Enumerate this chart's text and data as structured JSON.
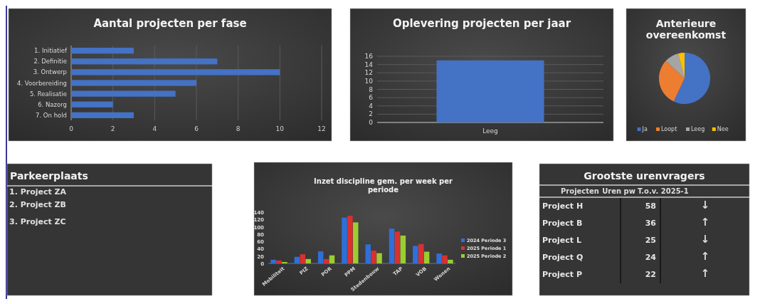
{
  "chart_data": [
    {
      "type": "bar",
      "orientation": "horizontal",
      "title": "Aantal projecten per fase",
      "categories": [
        "1. Initiatief",
        "2. Definitie",
        "3. Ontwerp",
        "4. Voorbereiding",
        "5. Realisatie",
        "6. Nazorg",
        "7. On hold"
      ],
      "values": [
        3,
        7,
        10,
        6,
        5,
        2,
        3
      ],
      "color": "#4472c4",
      "xlim": [
        0,
        12
      ],
      "xticks": [
        0,
        2,
        4,
        6,
        8,
        10,
        12
      ],
      "grid": "x"
    },
    {
      "type": "bar",
      "title": "Oplevering projecten per jaar",
      "categories": [
        "Leeg"
      ],
      "values": [
        15
      ],
      "color": "#4472c4",
      "ylim": [
        0,
        16
      ],
      "yticks": [
        0,
        2,
        4,
        6,
        8,
        10,
        12,
        14,
        16
      ],
      "grid": "y"
    },
    {
      "type": "pie",
      "title": "Anterieure overeenkomst",
      "categories": [
        "Ja",
        "Loopt",
        "Leeg",
        "Nee"
      ],
      "values": [
        57,
        30,
        9,
        4
      ],
      "colors": [
        "#4472c4",
        "#ed7d31",
        "#a5a5a5",
        "#ffc000"
      ],
      "legend": "bottom"
    },
    {
      "type": "other",
      "title": "Parkeerplaats",
      "annotations": [
        "1. Project ZA",
        "2. Project ZB",
        "3. Project ZC"
      ]
    },
    {
      "type": "bar",
      "title": "Inzet discipline gem. per week per periode",
      "categories": [
        "Mobiliteit",
        "PIZ",
        "POR",
        "PPM",
        "Stedenbouw",
        "TAP",
        "VOB",
        "Wonen"
      ],
      "ylim": [
        0,
        140
      ],
      "yticks": [
        0,
        20,
        40,
        60,
        80,
        100,
        120,
        140
      ],
      "legend": "right",
      "series": [
        {
          "name": "2024 Periode 3",
          "color": "#2f6fd8",
          "values": [
            10,
            18,
            33,
            125,
            52,
            95,
            48,
            27
          ]
        },
        {
          "name": "2025 Periode 1",
          "color": "#d93030",
          "values": [
            8,
            25,
            12,
            130,
            35,
            87,
            53,
            22
          ]
        },
        {
          "name": "2025 Periode 2",
          "color": "#9acd32",
          "values": [
            4,
            12,
            22,
            112,
            28,
            76,
            32,
            10
          ]
        }
      ]
    },
    {
      "type": "other",
      "title": "Grootste urenvragers",
      "xlabel": "Projecten",
      "ylabel": "Uren pw",
      "annotations": [
        "T.o.v. 2025-1",
        {
          "text": "↓",
          "x": "Project H"
        },
        {
          "text": "↑",
          "x": "Project B"
        },
        {
          "text": "↓",
          "x": "Project L"
        },
        {
          "text": "↑",
          "x": "Project Q"
        },
        {
          "text": "↑",
          "x": "Project P"
        }
      ],
      "categories": [
        "Project H",
        "Project B",
        "Project L",
        "Project Q",
        "Project P"
      ],
      "values": [
        58,
        36,
        25,
        24,
        22
      ],
      "data_labels": true
    }
  ]
}
